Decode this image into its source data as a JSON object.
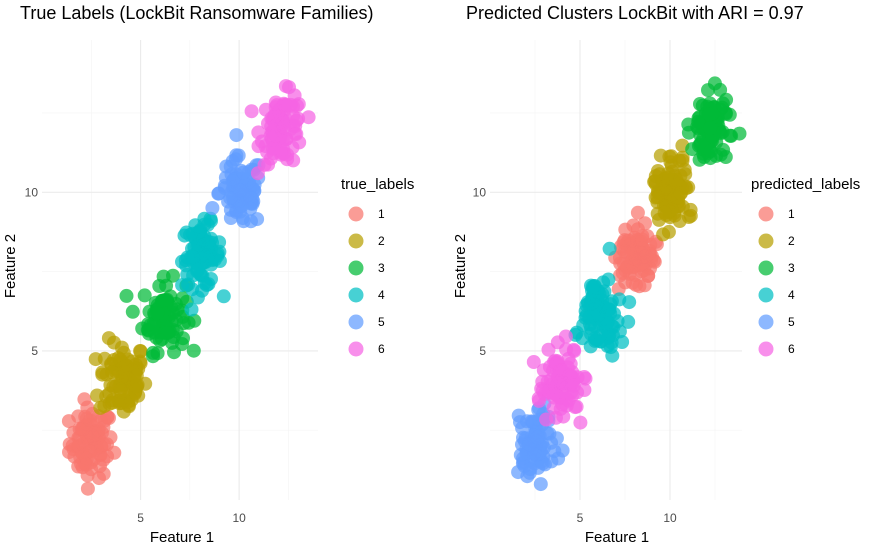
{
  "chart_data": [
    {
      "type": "scatter",
      "title": "True Labels (LockBit Ransomware Families)",
      "xlabel": "Feature 1",
      "ylabel": "Feature 2",
      "xlim": [
        0.0,
        14.0
      ],
      "ylim": [
        0.3,
        14.8
      ],
      "x_ticks": [
        5,
        10
      ],
      "y_ticks": [
        5,
        10
      ],
      "grid": true,
      "legend_title": "true_labels",
      "legend_position": "right",
      "series": [
        {
          "name": "1",
          "color": "#F8766D",
          "center": [
            2.5,
            2.1
          ],
          "spread": [
            0.55,
            0.55
          ]
        },
        {
          "name": "2",
          "color": "#B79F00",
          "center": [
            4.1,
            4.1
          ],
          "spread": [
            0.6,
            0.6
          ]
        },
        {
          "name": "3",
          "color": "#00BA38",
          "center": [
            6.2,
            6.1
          ],
          "spread": [
            0.55,
            0.55
          ]
        },
        {
          "name": "4",
          "color": "#00BFC4",
          "center": [
            8.1,
            8.0
          ],
          "spread": [
            0.5,
            0.5
          ]
        },
        {
          "name": "5",
          "color": "#619CFF",
          "center": [
            10.1,
            10.0
          ],
          "spread": [
            0.55,
            0.55
          ]
        },
        {
          "name": "6",
          "color": "#F564E3",
          "center": [
            12.2,
            12.0
          ],
          "spread": [
            0.55,
            0.55
          ]
        }
      ]
    },
    {
      "type": "scatter",
      "title": "Predicted Clusters LockBit with ARI = 0.97",
      "xlabel": "Feature 1",
      "ylabel": "Feature 2",
      "xlim": [
        0.0,
        14.0
      ],
      "ylim": [
        0.3,
        14.8
      ],
      "x_ticks": [
        5,
        10
      ],
      "y_ticks": [
        5,
        10
      ],
      "grid": true,
      "legend_title": "predicted_labels",
      "legend_position": "right",
      "series": [
        {
          "name": "1",
          "color": "#F8766D",
          "center": [
            8.1,
            8.0
          ],
          "spread": [
            0.5,
            0.5
          ]
        },
        {
          "name": "2",
          "color": "#B79F00",
          "center": [
            10.1,
            10.0
          ],
          "spread": [
            0.55,
            0.55
          ]
        },
        {
          "name": "3",
          "color": "#00BA38",
          "center": [
            12.2,
            12.0
          ],
          "spread": [
            0.55,
            0.55
          ]
        },
        {
          "name": "4",
          "color": "#00BFC4",
          "center": [
            6.2,
            6.1
          ],
          "spread": [
            0.55,
            0.55
          ]
        },
        {
          "name": "5",
          "color": "#619CFF",
          "center": [
            2.5,
            2.1
          ],
          "spread": [
            0.55,
            0.55
          ]
        },
        {
          "name": "6",
          "color": "#F564E3",
          "center": [
            4.1,
            4.1
          ],
          "spread": [
            0.6,
            0.6
          ]
        }
      ]
    }
  ]
}
